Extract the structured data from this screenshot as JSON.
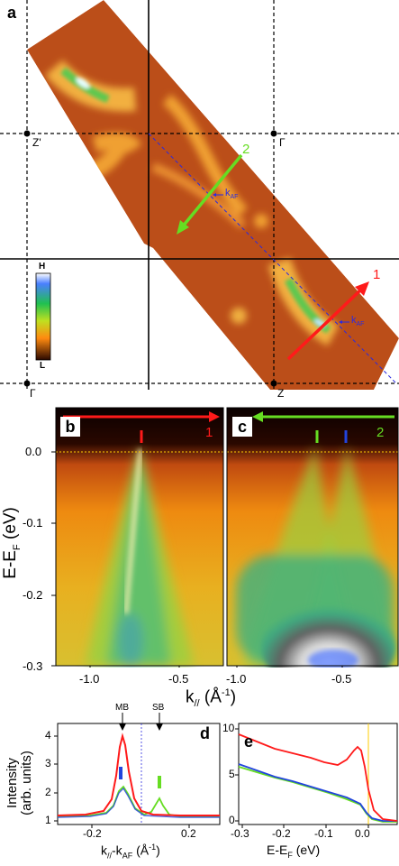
{
  "panel_a": {
    "letter": "a",
    "labels": {
      "z_prime": "Z'",
      "gamma_top": "Γ",
      "gamma_bottom": "Γ",
      "z_bottom": "Z",
      "cut1": "1",
      "cut2": "2",
      "kaf_1": "k",
      "kaf_1_sub": "AF",
      "kaf_2": "k",
      "kaf_2_sub": "AF"
    },
    "colorbar": {
      "high": "H",
      "low": "L"
    }
  },
  "panel_b": {
    "letter": "b",
    "cut": "1"
  },
  "panel_c": {
    "letter": "c",
    "cut": "2"
  },
  "bc_axes": {
    "ylabel_main": "E-E",
    "ylabel_sub": "F",
    "ylabel_unit": "(eV)",
    "yticks": [
      "0.0",
      "-0.1",
      "-0.2",
      "-0.3"
    ],
    "xlabel_main": "k",
    "xlabel_sub": "//",
    "xlabel_unit": "(Å",
    "xlabel_exp": "-1",
    "xlabel_close": ")",
    "xticks_b": [
      "-1.0",
      "-0.5"
    ],
    "xticks_c": [
      "-1.0",
      "-0.5"
    ]
  },
  "panel_d": {
    "letter": "d",
    "annot_mb": "MB",
    "annot_sb": "SB",
    "ylabel_1": "Intensity",
    "ylabel_2": "(arb. units)",
    "yticks": [
      "1",
      "2",
      "3",
      "4"
    ],
    "xticks": [
      "-0.2",
      "0.2"
    ],
    "xlabel_main": "k",
    "xlabel_sub": "//",
    "xlabel_mid": "-k",
    "xlabel_sub2": "AF",
    "xlabel_unit": "(Å",
    "xlabel_exp": "-1",
    "xlabel_close": ")"
  },
  "panel_e": {
    "letter": "e",
    "yticks": [
      "0",
      "5",
      "10"
    ],
    "xticks": [
      "-0.3",
      "-0.2",
      "-0.1",
      "0.0"
    ],
    "xlabel_main": "E-E",
    "xlabel_sub": "F",
    "xlabel_unit": "(eV)"
  },
  "colors": {
    "red": "#ff1a1a",
    "green": "#66dd22",
    "blue": "#2244dd",
    "orange_bg": "#cc5a1c",
    "fermi_line": "#ffcc00"
  }
}
